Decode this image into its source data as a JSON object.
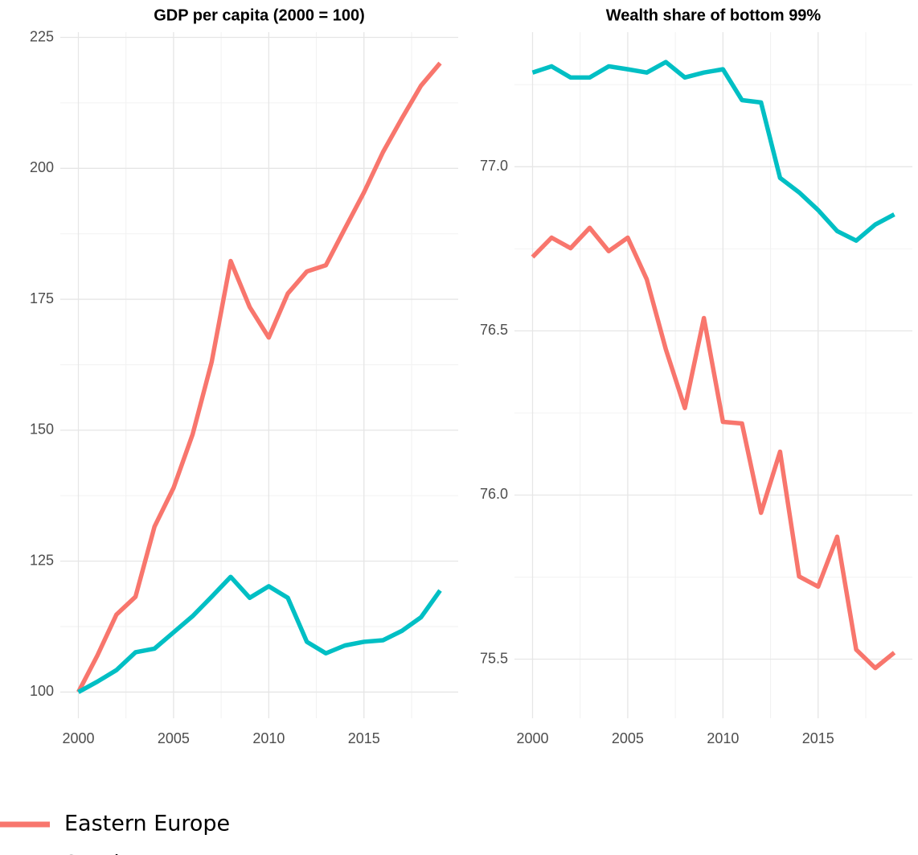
{
  "chart_data": [
    {
      "type": "line",
      "title": "GDP per capita (2000 = 100)",
      "x": [
        2000,
        2001,
        2002,
        2003,
        2004,
        2005,
        2006,
        2007,
        2008,
        2009,
        2010,
        2011,
        2012,
        2013,
        2014,
        2015,
        2016,
        2017,
        2018,
        2019
      ],
      "series": [
        {
          "name": "Eastern Europe",
          "color": "#F8766D",
          "values": [
            100,
            107,
            114.8,
            118.2,
            131.6,
            139,
            149.2,
            163,
            182.3,
            173.5,
            167.7,
            176.1,
            180.3,
            181.5,
            188.5,
            195.4,
            203.1,
            209.6,
            215.8,
            220.1
          ]
        },
        {
          "name": "Southern Europe",
          "color": "#00BFC4",
          "values": [
            100,
            102,
            104.2,
            107.6,
            108.3,
            111.4,
            114.5,
            118.2,
            122,
            118,
            120.2,
            118,
            109.6,
            107.4,
            108.9,
            109.6,
            109.9,
            111.7,
            114.3,
            119.4
          ]
        }
      ],
      "xlim": [
        1999.05,
        2019.95
      ],
      "xticks": [
        2000,
        2005,
        2010,
        2015
      ],
      "ylim": [
        95,
        226
      ],
      "yticks": [
        100,
        125,
        150,
        175,
        200,
        225
      ],
      "grid": true
    },
    {
      "type": "line",
      "title": "Wealth share of bottom 99%",
      "x": [
        2000,
        2001,
        2002,
        2003,
        2004,
        2005,
        2006,
        2007,
        2008,
        2009,
        2010,
        2011,
        2012,
        2013,
        2014,
        2015,
        2016,
        2017,
        2018,
        2019
      ],
      "series": [
        {
          "name": "Eastern Europe",
          "color": "#F8766D",
          "values": [
            76.725,
            76.784,
            76.752,
            76.814,
            76.743,
            76.784,
            76.657,
            76.444,
            76.265,
            76.539,
            76.223,
            76.218,
            75.946,
            76.132,
            75.752,
            75.721,
            75.873,
            75.529,
            75.473,
            75.52
          ]
        },
        {
          "name": "Southern Europe",
          "color": "#00BFC4",
          "values": [
            77.287,
            77.306,
            77.272,
            77.272,
            77.306,
            77.297,
            77.287,
            77.319,
            77.272,
            77.287,
            77.297,
            77.203,
            77.196,
            76.966,
            76.922,
            76.868,
            76.804,
            76.775,
            76.824,
            76.855
          ]
        }
      ],
      "xlim": [
        1999.05,
        2019.95
      ],
      "xticks": [
        2000,
        2005,
        2010,
        2015
      ],
      "ylim": [
        75.32,
        77.41
      ],
      "yticks": [
        75.5,
        {
          "value": 76,
          "label": "76.0"
        },
        76.5,
        {
          "value": 77,
          "label": "77.0"
        }
      ],
      "grid": true
    }
  ]
}
